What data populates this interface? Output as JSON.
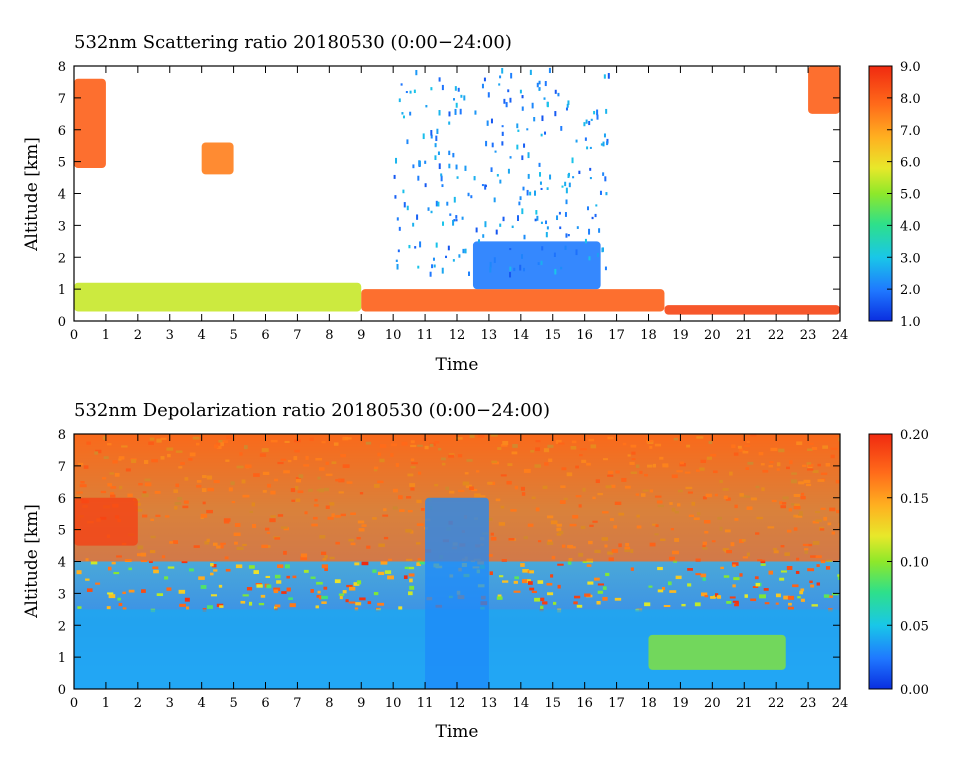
{
  "chart_data": [
    {
      "type": "heatmap",
      "title": "532nm Scattering ratio  20180530 (0:00−24:00)",
      "xlabel": "Time",
      "ylabel": "Altitude [km]",
      "xlim": [
        0,
        24
      ],
      "ylim": [
        0,
        8
      ],
      "x_ticks": [
        "0",
        "1",
        "2",
        "3",
        "4",
        "5",
        "6",
        "7",
        "8",
        "9",
        "10",
        "11",
        "12",
        "13",
        "14",
        "15",
        "16",
        "17",
        "18",
        "19",
        "20",
        "21",
        "22",
        "23",
        "24"
      ],
      "y_ticks": [
        "0",
        "1",
        "2",
        "3",
        "4",
        "5",
        "6",
        "7",
        "8"
      ],
      "colorbar": {
        "range": [
          1.0,
          9.0
        ],
        "labels": [
          "1.0",
          "2.0",
          "3.0",
          "4.0",
          "5.0",
          "6.0",
          "7.0",
          "8.0",
          "9.0"
        ]
      },
      "background": "#ffffff",
      "features": [
        {
          "t0": 0,
          "t1": 9,
          "z0": 0.3,
          "z1": 1.2,
          "level": 5.5
        },
        {
          "t0": 9,
          "t1": 18.5,
          "z0": 0.3,
          "z1": 1.0,
          "level": 8.0
        },
        {
          "t0": 18.5,
          "t1": 24,
          "z0": 0.2,
          "z1": 0.5,
          "level": 8.5
        },
        {
          "t0": 0,
          "t1": 1,
          "z0": 4.8,
          "z1": 7.6,
          "level": 8.0
        },
        {
          "t0": 4,
          "t1": 5,
          "z0": 4.6,
          "z1": 5.6,
          "level": 7.5
        },
        {
          "t0": 12.5,
          "t1": 16.5,
          "z0": 1.0,
          "z1": 2.5,
          "level": 2.0
        },
        {
          "t0": 23,
          "t1": 24,
          "z0": 6.5,
          "z1": 8.0,
          "level": 8.0
        }
      ]
    },
    {
      "type": "heatmap",
      "title": "532nm Depolarization ratio  20180530 (0:00−24:00)",
      "xlabel": "Time",
      "ylabel": "Altitude [km]",
      "xlim": [
        0,
        24
      ],
      "ylim": [
        0,
        8
      ],
      "x_ticks": [
        "0",
        "1",
        "2",
        "3",
        "4",
        "5",
        "6",
        "7",
        "8",
        "9",
        "10",
        "11",
        "12",
        "13",
        "14",
        "15",
        "16",
        "17",
        "18",
        "19",
        "20",
        "21",
        "22",
        "23",
        "24"
      ],
      "y_ticks": [
        "0",
        "1",
        "2",
        "3",
        "4",
        "5",
        "6",
        "7",
        "8"
      ],
      "colorbar": {
        "range": [
          0.0,
          0.2
        ],
        "labels": [
          "0.00",
          "0.05",
          "0.10",
          "0.15",
          "0.20"
        ]
      },
      "features": [
        {
          "t0": 0,
          "t1": 24,
          "z0": 0,
          "z1": 2.5,
          "level": 0.04
        },
        {
          "t0": 0,
          "t1": 24,
          "z0": 4.0,
          "z1": 8.0,
          "level": 0.17
        },
        {
          "t0": 18,
          "t1": 22.3,
          "z0": 0.6,
          "z1": 1.7,
          "level": 0.1
        },
        {
          "t0": 11,
          "t1": 13,
          "z0": 0,
          "z1": 6.0,
          "level": 0.03
        },
        {
          "t0": 0,
          "t1": 2,
          "z0": 4.5,
          "z1": 6.0,
          "level": 0.19
        }
      ]
    }
  ]
}
